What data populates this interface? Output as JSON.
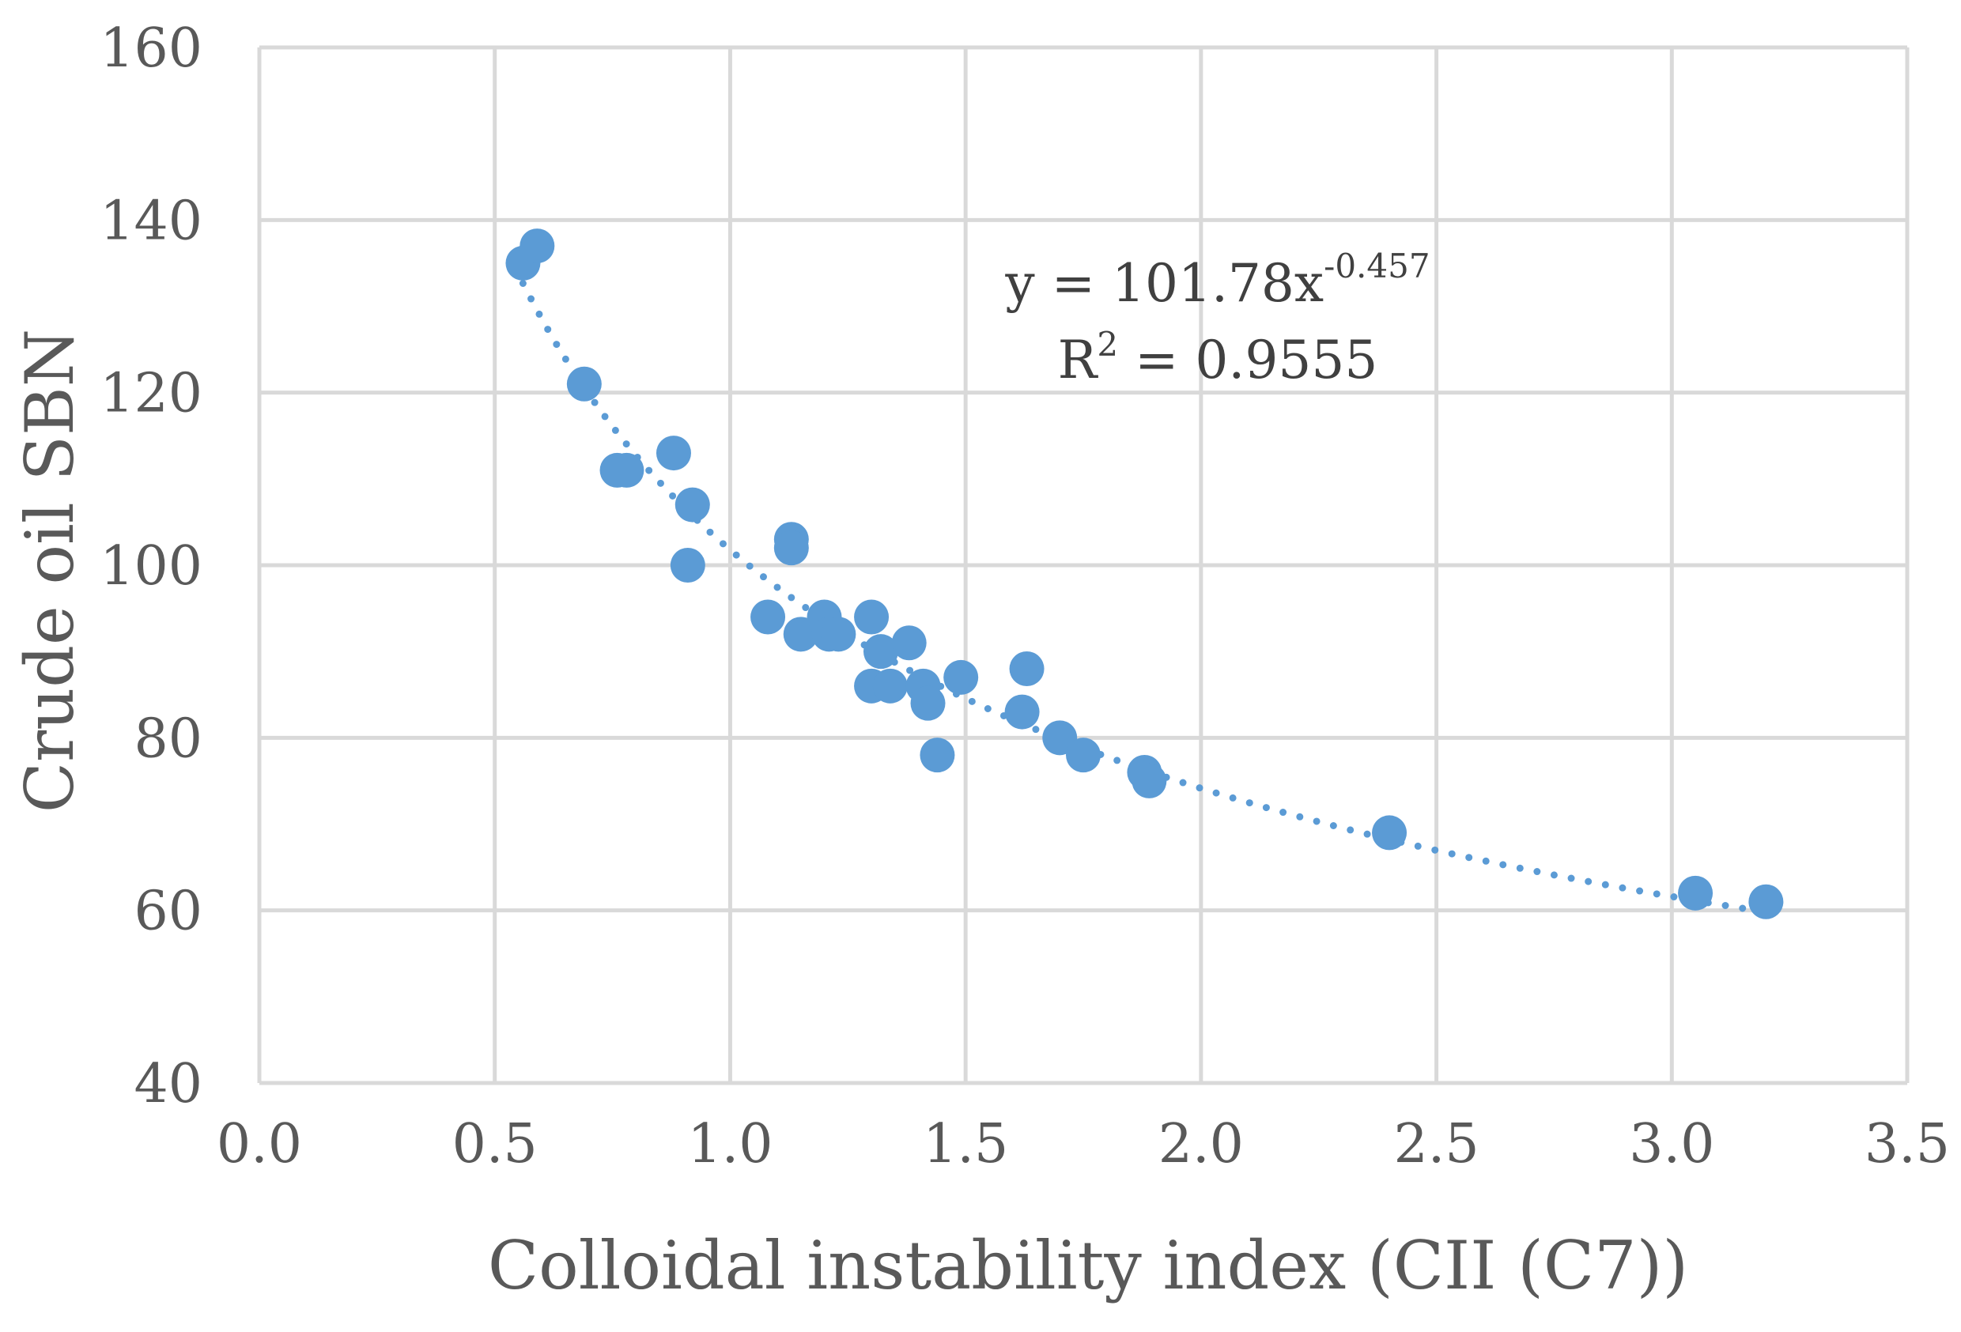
{
  "chart_data": {
    "type": "scatter",
    "title": "",
    "xlabel": "Colloidal instability index (CII (C7))",
    "ylabel": "Crude oil SBN",
    "xlim": [
      0,
      3.5
    ],
    "ylim": [
      40,
      160
    ],
    "xticks": [
      0.0,
      0.5,
      1.0,
      1.5,
      2.0,
      2.5,
      3.0,
      3.5
    ],
    "yticks": [
      40,
      60,
      80,
      100,
      120,
      140,
      160
    ],
    "xtick_labels": [
      "0.0",
      "0.5",
      "1.0",
      "1.5",
      "2.0",
      "2.5",
      "3.0",
      "3.5"
    ],
    "ytick_labels": [
      "40",
      "60",
      "80",
      "100",
      "120",
      "140",
      "160"
    ],
    "grid": true,
    "marker_color": "#5B9BD5",
    "series": [
      {
        "name": "Crude oil SBN",
        "x": [
          0.56,
          0.59,
          0.69,
          0.76,
          0.78,
          0.88,
          0.92,
          0.91,
          1.13,
          1.13,
          1.08,
          1.15,
          1.2,
          1.21,
          1.23,
          1.3,
          1.32,
          1.3,
          1.34,
          1.38,
          1.41,
          1.42,
          1.44,
          1.49,
          1.63,
          1.62,
          1.7,
          1.75,
          1.88,
          1.89,
          2.4,
          3.05,
          3.2
        ],
        "y": [
          135,
          137,
          121,
          111,
          111,
          113,
          107,
          100,
          103,
          102,
          94,
          92,
          94,
          92,
          92,
          94,
          90,
          86,
          86,
          91,
          86,
          84,
          78,
          87,
          88,
          83,
          80,
          78,
          76,
          75,
          69,
          62,
          61
        ]
      }
    ],
    "trendline": {
      "type": "power",
      "a": 101.78,
      "b": -0.457,
      "x_range": [
        0.56,
        3.2
      ],
      "color": "#5B9BD5",
      "style": "dotted"
    },
    "annotations": {
      "equation_main": "y = 101.78x",
      "equation_exponent": "-0.457",
      "r2_base": "R",
      "r2_sup": "2",
      "r2_value": " = 0.9555"
    }
  }
}
